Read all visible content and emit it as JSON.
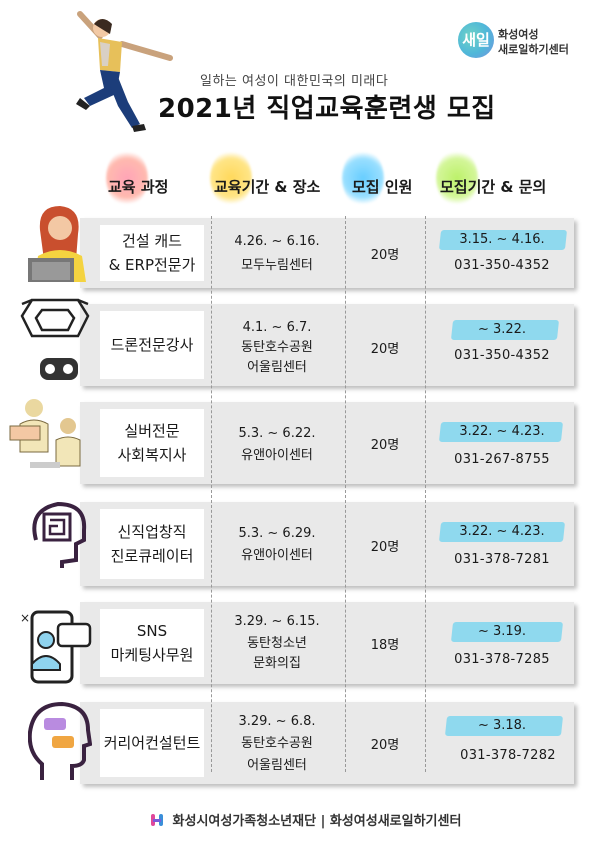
{
  "logo": {
    "mark": "새일",
    "line1": "화성여성",
    "line2": "새로일하기센터"
  },
  "header": {
    "subtitle": "일하는 여성이 대한민국의 미래다",
    "title": "2021년 직업교육훈련생 모집"
  },
  "columns": {
    "course": "교육 과정",
    "period_place": "교육기간 & 장소",
    "count": "모집 인원",
    "recruit_contact": "모집기간 & 문의"
  },
  "courses": [
    {
      "name1": "건설 캐드",
      "name2": "& ERP전문가",
      "period": "4.26. ~ 6.16.",
      "place1": "모두누림센터",
      "place2": "",
      "count": "20명",
      "recruit": "3.15. ~ 4.16.",
      "phone": "031-350-4352"
    },
    {
      "name1": "드론전문강사",
      "name2": "",
      "period": "4.1. ~ 6.7.",
      "place1": "동탄호수공원",
      "place2": "어울림센터",
      "count": "20명",
      "recruit": "~ 3.22.",
      "phone": "031-350-4352"
    },
    {
      "name1": "실버전문",
      "name2": "사회복지사",
      "period": "5.3. ~ 6.22.",
      "place1": "유앤아이센터",
      "place2": "",
      "count": "20명",
      "recruit": "3.22. ~ 4.23.",
      "phone": "031-267-8755"
    },
    {
      "name1": "신직업창직",
      "name2": "진로큐레이터",
      "period": "5.3. ~ 6.29.",
      "place1": "유앤아이센터",
      "place2": "",
      "count": "20명",
      "recruit": "3.22. ~ 4.23.",
      "phone": "031-378-7281"
    },
    {
      "name1": "SNS",
      "name2": "마케팅사무원",
      "period": "3.29. ~ 6.15.",
      "place1": "동탄청소년",
      "place2": "문화의집",
      "count": "18명",
      "recruit": "~ 3.19.",
      "phone": "031-378-7285"
    },
    {
      "name1": "커리어컨설턴트",
      "name2": "",
      "period": "3.29. ~ 6.8.",
      "place1": "동탄호수공원",
      "place2": "어울림센터",
      "count": "20명",
      "recruit": "~ 3.18.",
      "phone": "031-378-7282"
    }
  ],
  "icons": [
    "woman-laptop-icon",
    "drone-icon",
    "seniors-reading-icon",
    "brain-maze-icon",
    "phone-chat-user-icon",
    "head-chat-icon"
  ],
  "footer": {
    "text": "화성시여성가족청소년재단 | 화성여성새로일하기센터"
  },
  "colors": {
    "row_bg": "#e9e9e9",
    "highlight": "#8fd9ee",
    "pink": "#ff9bb0",
    "yellow": "#ffd54a",
    "blue": "#58c9ff",
    "green": "#b6f05a"
  }
}
